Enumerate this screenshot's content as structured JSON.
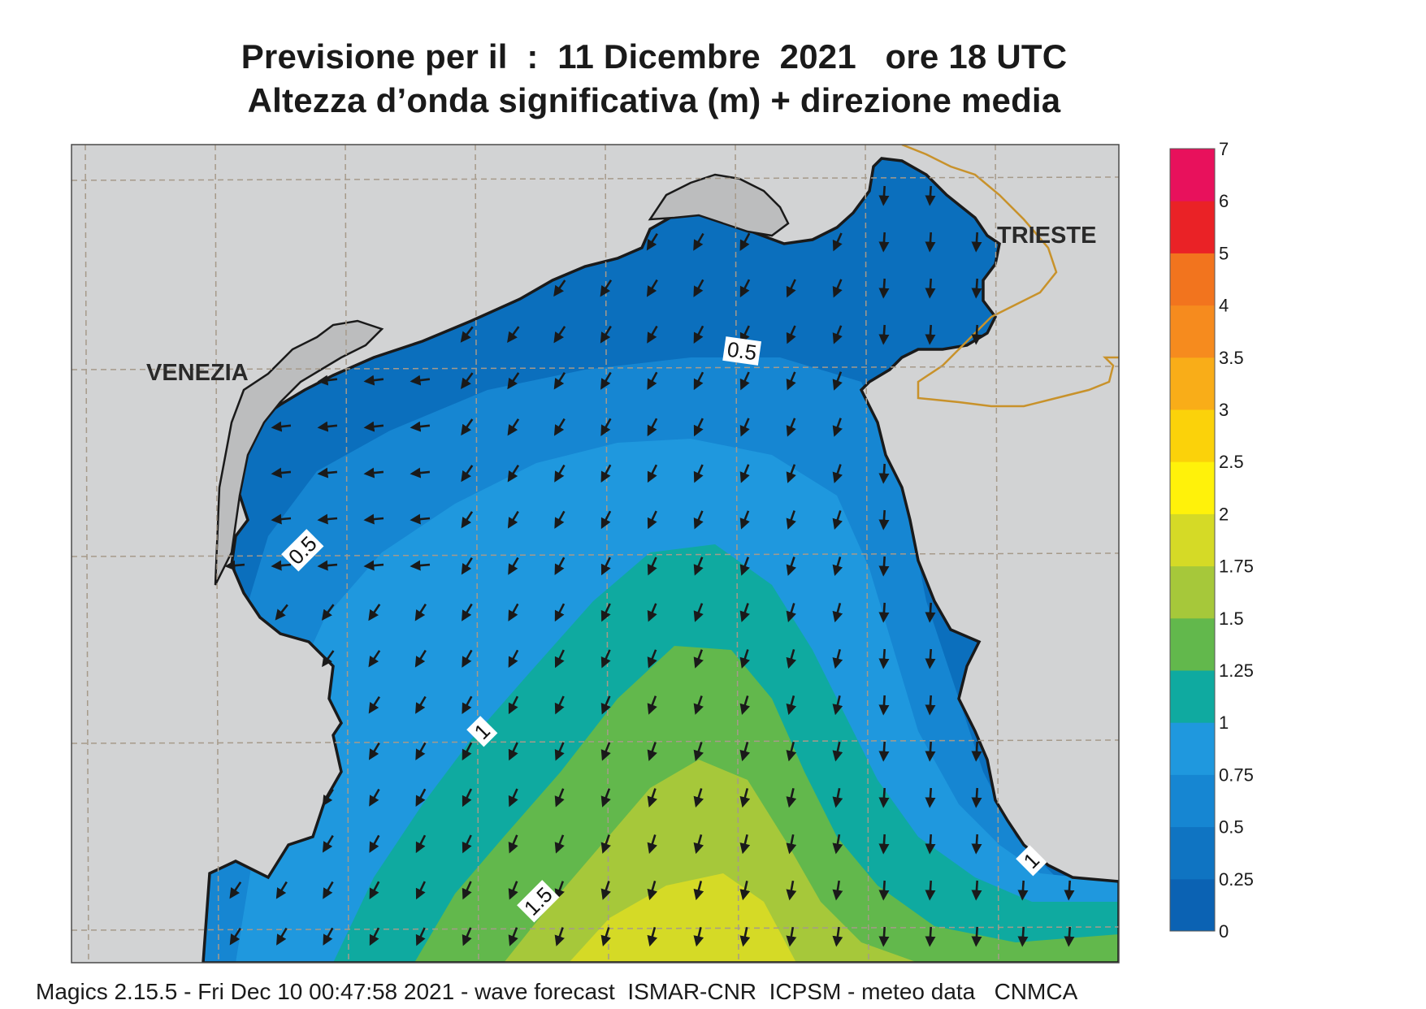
{
  "header": {
    "title_line1": "Previsione per il  :  11 Dicembre  2021   ore 18 UTC",
    "title_line2": "Altezza d’onda significativa (m) + direzione media"
  },
  "map_labels": {
    "venezia": "VENEZIA",
    "trieste": "TRIESTE"
  },
  "contour_labels": [
    "0.5",
    "0.5",
    "1",
    "1",
    "1.5"
  ],
  "colorbar": {
    "levels": [
      "0",
      "0.25",
      "0.5",
      "0.75",
      "1",
      "1.25",
      "1.5",
      "1.75",
      "2",
      "2.5",
      "3",
      "3.5",
      "4",
      "5",
      "6",
      "7"
    ],
    "colors": [
      "#0b62b3",
      "#0f74c2",
      "#1686d2",
      "#1f98de",
      "#0faaa0",
      "#62b84c",
      "#a6c83a",
      "#d5da26",
      "#fff20a",
      "#fbd20a",
      "#f9ad18",
      "#f68b1e",
      "#f2741e",
      "#ea2226",
      "#e8115c"
    ]
  },
  "colors": {
    "land": "#d2d3d4",
    "coast": "#1a1a1a",
    "border": "#c8922b",
    "arrows": "#1a1a1a",
    "grid": "#a69a8a"
  },
  "footer": {
    "text": "Magics 2.15.5 - Fri Dec 10 00:47:58 2021 - wave forecast  ISMAR-CNR  ICPSM - meteo data   CNMCA"
  }
}
